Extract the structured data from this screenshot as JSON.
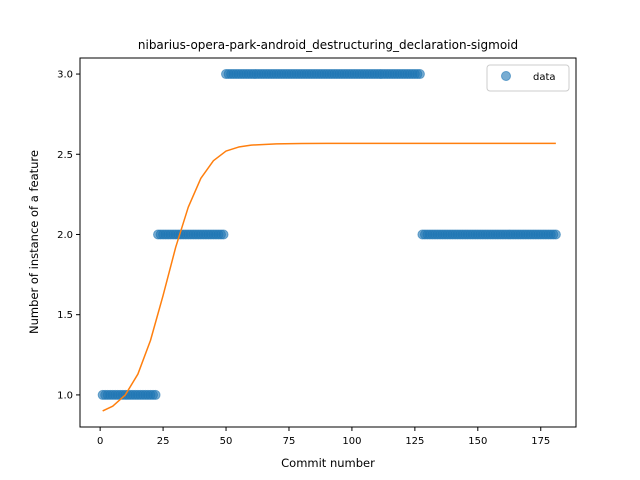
{
  "chart_data": {
    "type": "scatter",
    "title": "nibarius-opera-park-android_destructuring_declaration-sigmoid",
    "xlabel": "Commit number",
    "ylabel": "Number of instance of a feature",
    "xlim": [
      -8,
      189
    ],
    "ylim": [
      0.8,
      3.1
    ],
    "xticks": [
      0,
      25,
      50,
      75,
      100,
      125,
      150,
      175
    ],
    "yticks": [
      1.0,
      1.5,
      2.0,
      2.5,
      3.0
    ],
    "xtick_labels": [
      "0",
      "25",
      "50",
      "75",
      "100",
      "125",
      "150",
      "175"
    ],
    "ytick_labels": [
      "1.0",
      "1.5",
      "2.0",
      "2.5",
      "3.0"
    ],
    "legend": {
      "position": "top-right",
      "entries": [
        "data"
      ]
    },
    "grid": false,
    "series": [
      {
        "name": "data",
        "kind": "scatter",
        "color": "#1f77b4",
        "segments": [
          {
            "x_start": 1,
            "x_end": 22,
            "y": 1.0
          },
          {
            "x_start": 23,
            "x_end": 49,
            "y": 2.0
          },
          {
            "x_start": 50,
            "x_end": 127,
            "y": 3.0
          },
          {
            "x_start": 128,
            "x_end": 181,
            "y": 2.0
          }
        ]
      },
      {
        "kind": "line",
        "color": "#ff7f0e",
        "x": [
          1,
          5,
          10,
          15,
          20,
          25,
          30,
          35,
          40,
          45,
          50,
          55,
          60,
          70,
          80,
          90,
          100,
          120,
          140,
          160,
          181
        ],
        "y": [
          0.9,
          0.93,
          1.0,
          1.13,
          1.34,
          1.62,
          1.92,
          2.17,
          2.35,
          2.46,
          2.52,
          2.545,
          2.557,
          2.565,
          2.567,
          2.568,
          2.568,
          2.568,
          2.568,
          2.568,
          2.568
        ]
      }
    ]
  }
}
